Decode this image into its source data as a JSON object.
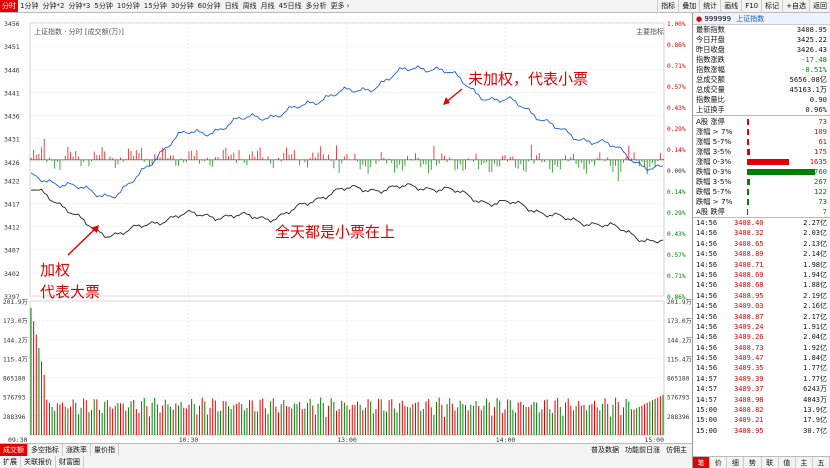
{
  "toolbar": {
    "periods": [
      "分时",
      "1分钟",
      "分钟*2",
      "分钟*3",
      "5分钟",
      "10分钟",
      "15分钟",
      "30分钟",
      "60分钟",
      "日线",
      "周线",
      "月线",
      "45日线",
      "多分析",
      "更多 ›"
    ],
    "active_period": 0,
    "tools": [
      "指标",
      "叠加",
      "统计",
      "画线",
      "F10",
      "标记",
      "+自选",
      "返回"
    ]
  },
  "chart": {
    "title": "上证指数 · 分时 [成交额(万)]",
    "right_title": "主要指标",
    "prev_close": 3426.43,
    "price_labels_left": [
      "3456",
      "3451",
      "3446",
      "3441",
      "3436",
      "3431",
      "3426",
      "3422",
      "3417",
      "3412",
      "3407",
      "3402",
      "3397"
    ],
    "pct_labels_right": [
      "1.00%",
      "0.86%",
      "0.71%",
      "0.57%",
      "0.43%",
      "0.29%",
      "0.14%",
      "0.00%",
      "0.14%",
      "0.29%",
      "0.43%",
      "0.57%",
      "0.71%",
      "0.86%"
    ],
    "volume_labels_left": [
      "201.9万",
      "173.0万",
      "144.2万",
      "115.4万",
      "865180",
      "576793",
      "288396"
    ],
    "volume_labels_right": [
      "201.9万",
      "173.0万",
      "144.2万",
      "115.4万",
      "865180",
      "576793",
      "288396"
    ],
    "time_labels": [
      "09:30",
      "10:30",
      "13:00",
      "14:00",
      "15:00"
    ],
    "annotations": {
      "unweighted": "未加权，代表小票",
      "weighted_1": "加权",
      "weighted_2": "代表大票",
      "all_day": "全天都是小票在上"
    }
  },
  "chart_data": {
    "type": "line",
    "x": [
      "09:30",
      "10:00",
      "10:30",
      "11:00",
      "11:30/13:00",
      "13:30",
      "14:00",
      "14:30",
      "15:00"
    ],
    "series": [
      {
        "name": "",
        "values": [
          3422.5,
          3419.0,
          3432.0,
          3436.0,
          3441.0,
          3446.5,
          3439.0,
          3431.0,
          3424.5
        ]
      },
      {
        "name": "",
        "values": [
          3419.8,
          3410.5,
          3414.5,
          3414.0,
          3420.0,
          3420.5,
          3417.0,
          3413.0,
          3408.9
        ]
      }
    ],
    "ylim": [
      3397,
      3456
    ],
    "volume_ylim": [
      0,
      2019000
    ]
  },
  "bottom": {
    "tabs": [
      "成交额",
      "多空指标",
      "涨跌率",
      "量价指"
    ],
    "active_tab": 0,
    "tabs2": [
      "扩展",
      "关联报价",
      "财富圈"
    ],
    "right": [
      "普及数据",
      "功能前日涨",
      "仿佣主"
    ]
  },
  "panel": {
    "code": "999999",
    "name": "上证指数",
    "quote": [
      {
        "label": "最新指数",
        "value": "3408.95",
        "c": ""
      },
      {
        "label": "今日开盘",
        "value": "3425.22",
        "c": ""
      },
      {
        "label": "昨日收盘",
        "value": "3426.43",
        "c": ""
      },
      {
        "label": "指数涨跌",
        "value": "-17.48",
        "c": "dn"
      },
      {
        "label": "指数涨幅",
        "value": "-0.51%",
        "c": "dn"
      },
      {
        "label": "总成交额",
        "value": "5656.08亿",
        "c": ""
      },
      {
        "label": "总成交量",
        "value": "45163.1万",
        "c": ""
      },
      {
        "label": "指数量比",
        "value": "0.90",
        "c": ""
      },
      {
        "label": "上证换手",
        "value": "0.96%",
        "c": ""
      }
    ],
    "dist": [
      {
        "label": "A股 涨停",
        "value": "73",
        "c": "up",
        "bar": 2
      },
      {
        "label": "涨幅 > 7%",
        "value": "109",
        "c": "up",
        "bar": 2
      },
      {
        "label": "涨幅 5-7%",
        "value": "61",
        "c": "up",
        "bar": 2
      },
      {
        "label": "涨幅 3-5%",
        "value": "175",
        "c": "up",
        "bar": 3
      },
      {
        "label": "涨幅 0-3%",
        "value": "1635",
        "c": "up",
        "bar": 42
      },
      {
        "label": "跌幅 0-3%",
        "value": "2760",
        "c": "dn",
        "bar": 68
      },
      {
        "label": "跌幅 3-5%",
        "value": "267",
        "c": "dn",
        "bar": 3
      },
      {
        "label": "跌幅 5-7%",
        "value": "122",
        "c": "dn",
        "bar": 2
      },
      {
        "label": "跌幅 > 7%",
        "value": "73",
        "c": "dn",
        "bar": 2
      },
      {
        "label": "A股 跌停",
        "value": "7",
        "c": "dn",
        "bar": 1
      }
    ],
    "ticks": [
      {
        "time": "14:56",
        "price": "3408.40",
        "vol": "2.27亿"
      },
      {
        "time": "14:56",
        "price": "3408.32",
        "vol": "2.03亿"
      },
      {
        "time": "14:56",
        "price": "3408.65",
        "vol": "2.13亿"
      },
      {
        "time": "14:56",
        "price": "3408.89",
        "vol": "2.14亿"
      },
      {
        "time": "14:56",
        "price": "3408.71",
        "vol": "1.98亿"
      },
      {
        "time": "14:56",
        "price": "3408.69",
        "vol": "1.94亿"
      },
      {
        "time": "14:56",
        "price": "3408.68",
        "vol": "1.88亿"
      },
      {
        "time": "14:56",
        "price": "3408.95",
        "vol": "2.19亿"
      },
      {
        "time": "14:56",
        "price": "3409.03",
        "vol": "2.16亿"
      },
      {
        "time": "14:56",
        "price": "3408.87",
        "vol": "2.17亿"
      },
      {
        "time": "14:56",
        "price": "3409.24",
        "vol": "1.91亿"
      },
      {
        "time": "14:56",
        "price": "3409.26",
        "vol": "2.04亿"
      },
      {
        "time": "14:56",
        "price": "3408.73",
        "vol": "1.92亿"
      },
      {
        "time": "14:56",
        "price": "3409.47",
        "vol": "1.84亿"
      },
      {
        "time": "14:56",
        "price": "3409.35",
        "vol": "1.77亿"
      },
      {
        "time": "14:57",
        "price": "3409.39",
        "vol": "1.77亿"
      },
      {
        "time": "14:57",
        "price": "3409.37",
        "vol": "6243万"
      },
      {
        "time": "14:57",
        "price": "3408.98",
        "vol": "4043万"
      },
      {
        "time": "15:00",
        "price": "3408.82",
        "vol": "13.9亿"
      },
      {
        "time": "15:00",
        "price": "3409.21",
        "vol": "17.9亿"
      },
      {
        "time": "15:00",
        "price": "3408.95",
        "vol": "30.7亿"
      }
    ],
    "foot": [
      "笔",
      "价",
      "细",
      "势",
      "联",
      "值",
      "主",
      "五"
    ]
  },
  "colors": {
    "blue_line": "#1f5fd9",
    "black_line": "#222222",
    "up": "#e00000",
    "down": "#008000"
  }
}
